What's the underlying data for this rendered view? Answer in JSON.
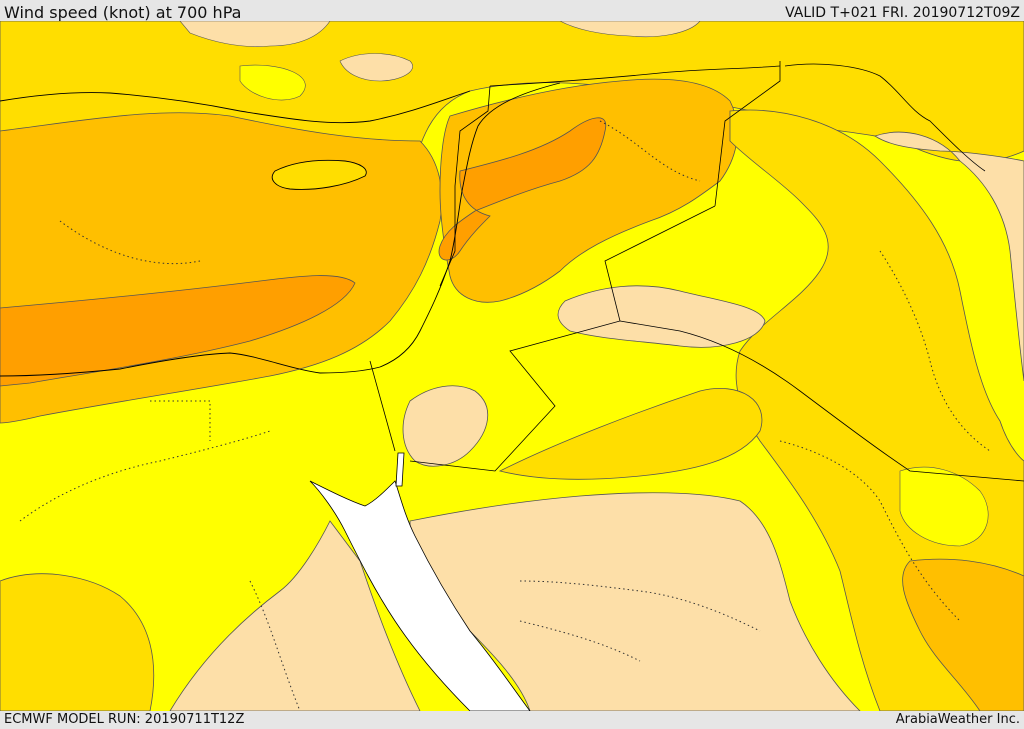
{
  "header": {
    "title": "Wind speed (knot) at 700 hPa",
    "valid": "VALID T+021 FRI. 20190712T09Z"
  },
  "footer": {
    "model_run": "ECMWF MODEL RUN: 20190711T12Z",
    "credit": "ArabiaWeather Inc."
  },
  "map": {
    "colors": {
      "band_lowest": "#fddfa8",
      "band_low": "#ffff00",
      "band_mid": "#ffde00",
      "band_high": "#ffbf00",
      "band_highest": "#ff9f00",
      "water": "#ffffff",
      "border": "#000000",
      "contour": "#555555"
    }
  }
}
